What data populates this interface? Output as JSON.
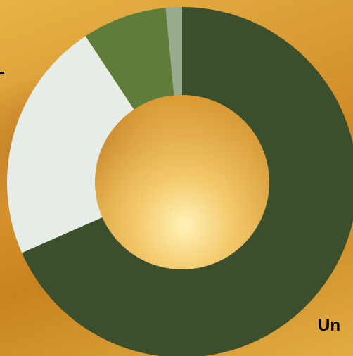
{
  "chart_data": {
    "type": "pie",
    "variant": "donut",
    "title": "",
    "slices": [
      {
        "value": 68.4,
        "color": "#3b4f2d"
      },
      {
        "value": 22.3,
        "color": "#e6ede6"
      },
      {
        "value": 7.8,
        "color": "#5f7d3a"
      },
      {
        "value": 1.5,
        "color": "#98ab8e"
      }
    ],
    "legend": "none",
    "visible_labels": [
      "Un"
    ]
  }
}
